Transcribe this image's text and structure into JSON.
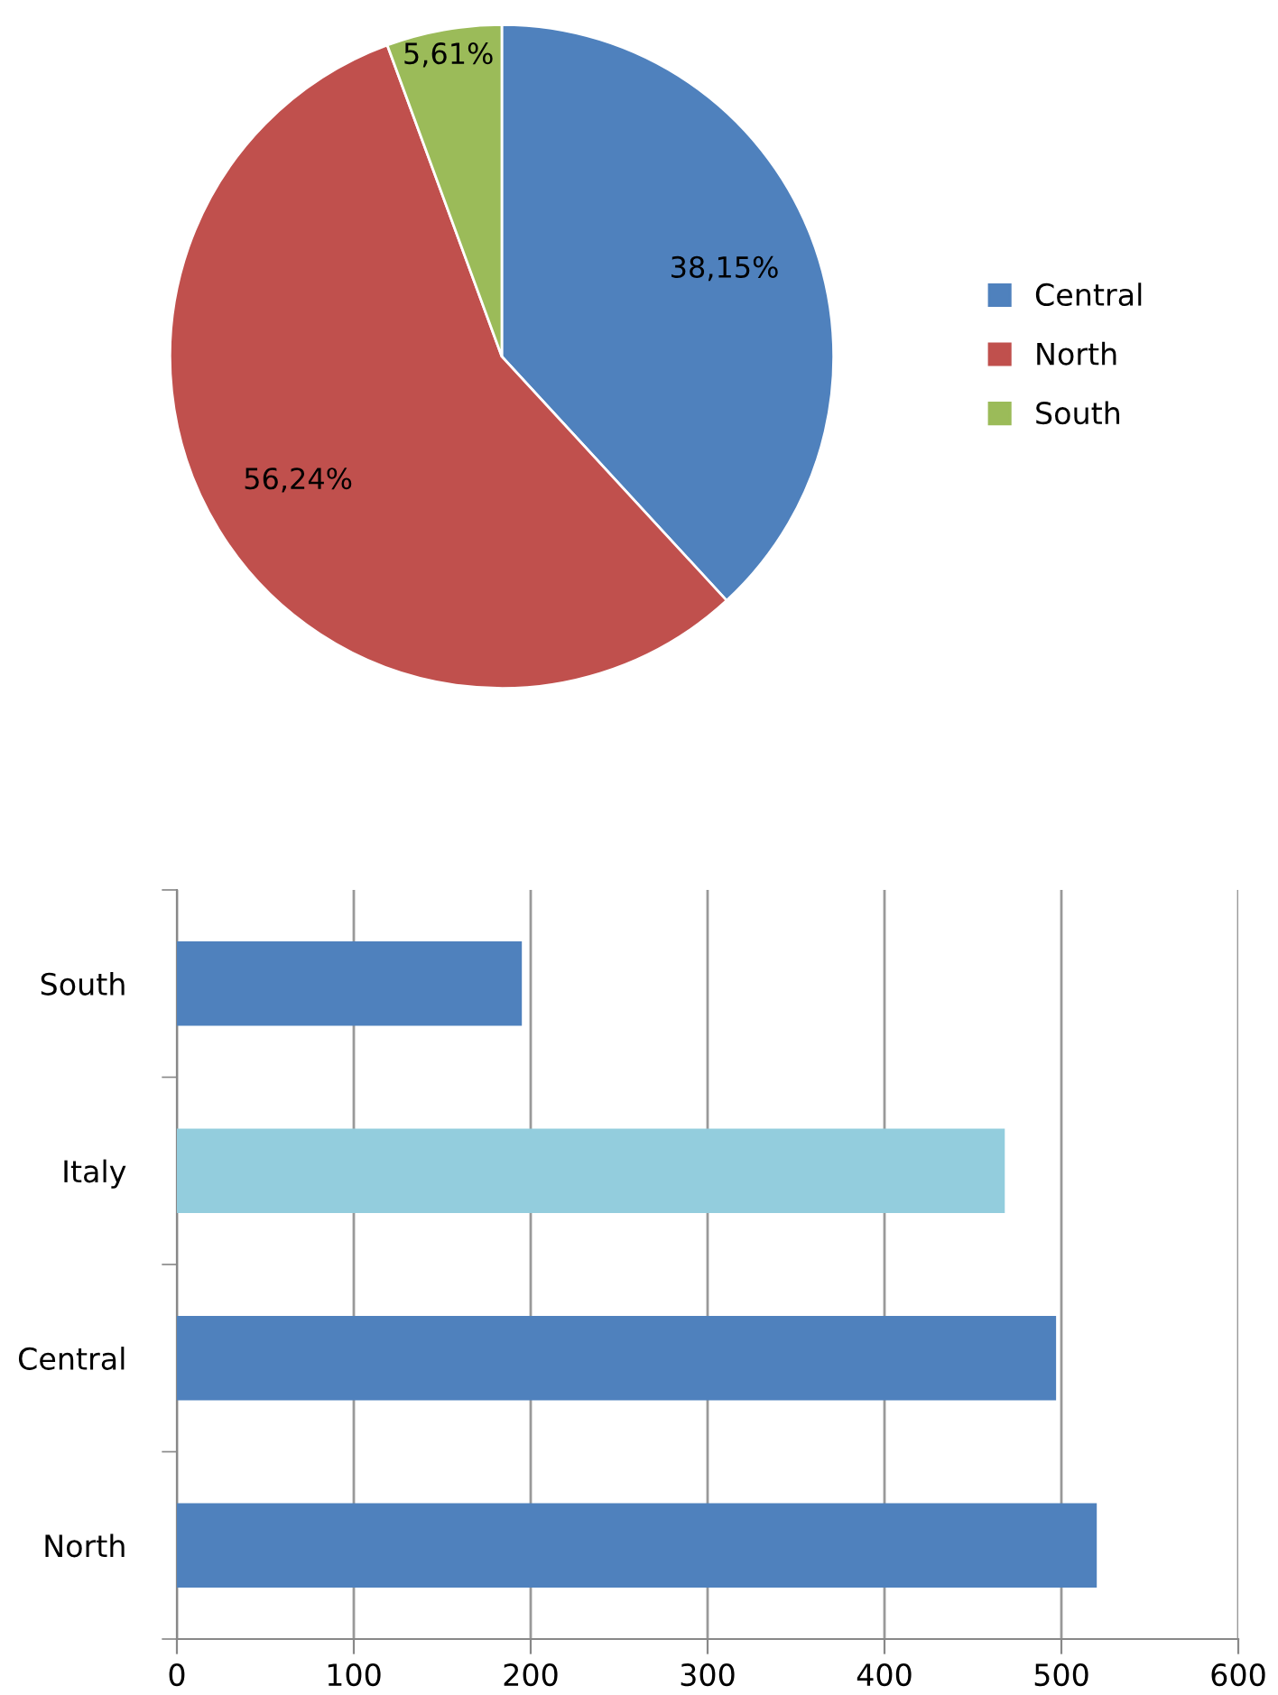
{
  "chart_data": [
    {
      "type": "pie",
      "categories": [
        "Central",
        "North",
        "South"
      ],
      "values": [
        38.15,
        56.24,
        5.61
      ],
      "colors": [
        "#4f81bd",
        "#c0504d",
        "#9bbb59"
      ],
      "value_labels": [
        "38,15%",
        "56,24%",
        "5,61%"
      ],
      "legend": "right"
    },
    {
      "type": "bar",
      "orientation": "horizontal",
      "categories": [
        "South",
        "Italy",
        "Central",
        "North"
      ],
      "values": [
        195,
        468,
        497,
        520
      ],
      "colors": [
        "#4f81bd",
        "#93cddd",
        "#4f81bd",
        "#4f81bd"
      ],
      "xlim": [
        0,
        600
      ],
      "xticks": [
        0,
        100,
        200,
        300,
        400,
        500,
        600
      ],
      "grid": "x"
    }
  ]
}
